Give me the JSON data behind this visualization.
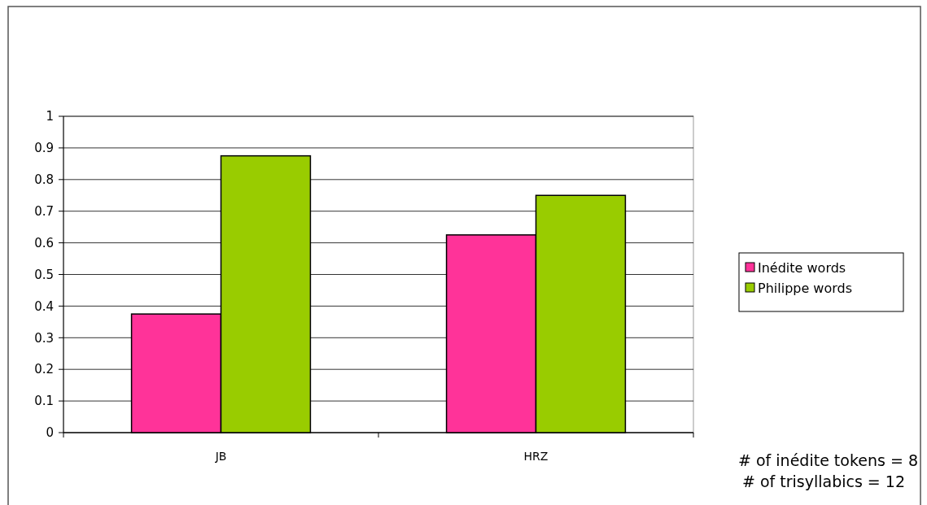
{
  "chart_data": {
    "type": "bar",
    "categories": [
      "JB",
      "HRZ"
    ],
    "series": [
      {
        "name": "Inédite words",
        "color": "#ff3399",
        "values": [
          0.375,
          0.625
        ]
      },
      {
        "name": "Philippe words",
        "color": "#99cc00",
        "values": [
          0.875,
          0.75
        ]
      }
    ],
    "ylim": [
      0,
      1
    ],
    "yticks": [
      0,
      0.1,
      0.2,
      0.3,
      0.4,
      0.5,
      0.6,
      0.7,
      0.8,
      0.9,
      1
    ],
    "grid": "y",
    "legend": "right",
    "annotations": [
      "# of inédite tokens = 8",
      "# of trisyllabics = 12"
    ]
  }
}
